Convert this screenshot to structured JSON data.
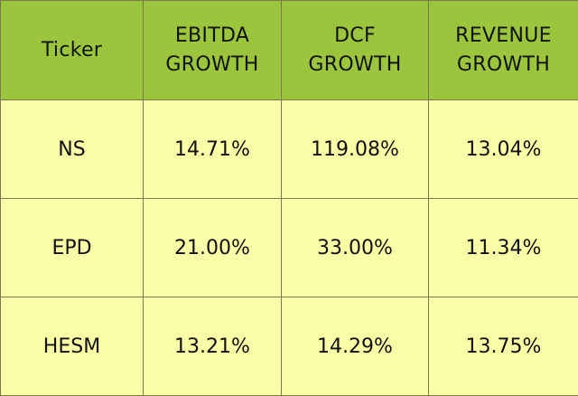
{
  "chart_data": {
    "type": "table",
    "columns": [
      {
        "label_lines": [
          "Ticker"
        ]
      },
      {
        "label_lines": [
          "EBITDA",
          "GROWTH"
        ]
      },
      {
        "label_lines": [
          "DCF",
          "GROWTH"
        ]
      },
      {
        "label_lines": [
          "REVENUE",
          "GROWTH"
        ]
      }
    ],
    "rows": [
      {
        "ticker": "NS",
        "ebitda_growth": "14.71%",
        "dcf_growth": "119.08%",
        "revenue_growth": "13.04%"
      },
      {
        "ticker": "EPD",
        "ebitda_growth": "21.00%",
        "dcf_growth": "33.00%",
        "revenue_growth": "11.34%"
      },
      {
        "ticker": "HESM",
        "ebitda_growth": "13.21%",
        "dcf_growth": "14.29%",
        "revenue_growth": "13.75%"
      }
    ],
    "colors": {
      "header_bg": "#9bc53d",
      "body_bg": "#fbfda7",
      "border": "#7a7a4a"
    }
  }
}
